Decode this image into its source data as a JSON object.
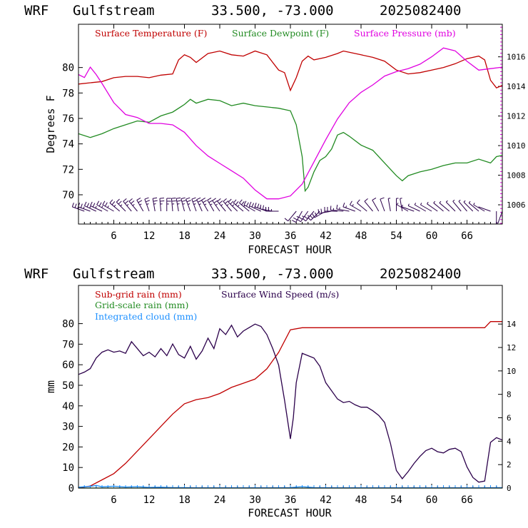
{
  "panels": [
    {
      "header": {
        "model": "WRF",
        "location": "Gulfstream",
        "coords": "33.500, -73.000",
        "date": "2025082400"
      },
      "xlabel": "FORECAST HOUR",
      "ylabel": "Degrees F"
    },
    {
      "header": {
        "model": "WRF",
        "location": "Gulfstream",
        "coords": "33.500, -73.000",
        "date": "2025082400"
      },
      "xlabel": "FORECAST HOUR",
      "ylabel": "mm"
    }
  ],
  "chart_data": [
    {
      "type": "line",
      "xlim": [
        0,
        72
      ],
      "xticks": [
        6,
        12,
        18,
        24,
        30,
        36,
        42,
        48,
        54,
        60,
        66
      ],
      "xlabel": "FORECAST HOUR",
      "ylabel": "Degrees F",
      "ylim": [
        67.7,
        83.4
      ],
      "yticks": [
        70,
        72,
        74,
        76,
        78,
        80
      ],
      "y2lim": [
        1004.7,
        1018.2
      ],
      "y2ticks": [
        1006,
        1008,
        1010,
        1012,
        1014,
        1016
      ],
      "series": [
        {
          "name": "Surface Temperature (F)",
          "color": "#c00000",
          "axis": "left",
          "x": [
            0,
            2,
            4,
            6,
            8,
            10,
            12,
            14,
            16,
            17,
            18,
            19,
            20,
            22,
            24,
            26,
            28,
            30,
            32,
            34,
            35,
            36,
            37,
            38,
            39,
            40,
            42,
            44,
            45,
            46,
            48,
            50,
            52,
            54,
            56,
            58,
            60,
            62,
            64,
            66,
            68,
            69,
            70,
            71,
            72
          ],
          "y": [
            78.7,
            78.8,
            78.9,
            79.2,
            79.3,
            79.3,
            79.2,
            79.4,
            79.5,
            80.6,
            81.0,
            80.8,
            80.4,
            81.1,
            81.3,
            81.0,
            80.9,
            81.3,
            81.0,
            79.8,
            79.6,
            78.2,
            79.2,
            80.5,
            80.9,
            80.6,
            80.8,
            81.1,
            81.3,
            81.2,
            81.0,
            80.8,
            80.5,
            79.8,
            79.5,
            79.6,
            79.8,
            80.0,
            80.3,
            80.7,
            80.9,
            80.6,
            79.0,
            78.4,
            78.6
          ]
        },
        {
          "name": "Surface Dewpoint (F)",
          "color": "#228b22",
          "axis": "left",
          "x": [
            0,
            2,
            4,
            6,
            8,
            10,
            12,
            14,
            16,
            18,
            19,
            20,
            22,
            24,
            26,
            28,
            30,
            32,
            34,
            36,
            37,
            38,
            38.5,
            39,
            40,
            41,
            42,
            43,
            44,
            45,
            46,
            48,
            50,
            52,
            54,
            55,
            56,
            58,
            60,
            62,
            64,
            66,
            68,
            70,
            71,
            72
          ],
          "y": [
            74.8,
            74.5,
            74.8,
            75.2,
            75.5,
            75.8,
            75.7,
            76.2,
            76.5,
            77.1,
            77.5,
            77.2,
            77.5,
            77.4,
            77.0,
            77.2,
            77.0,
            76.9,
            76.8,
            76.6,
            75.5,
            73.0,
            70.3,
            70.6,
            71.8,
            72.7,
            73.0,
            73.6,
            74.7,
            74.9,
            74.6,
            73.9,
            73.5,
            72.5,
            71.5,
            71.1,
            71.5,
            71.8,
            72.0,
            72.3,
            72.5,
            72.5,
            72.8,
            72.5,
            73.0,
            73.1
          ]
        },
        {
          "name": "Surface Pressure (mb)",
          "color": "#e000e0",
          "axis": "right",
          "x": [
            0,
            1,
            2,
            3,
            4,
            6,
            8,
            10,
            12,
            14,
            16,
            18,
            20,
            22,
            24,
            26,
            28,
            30,
            32,
            34,
            36,
            38,
            40,
            42,
            44,
            46,
            48,
            50,
            52,
            54,
            56,
            58,
            60,
            62,
            64,
            66,
            68,
            70,
            72
          ],
          "y": [
            1014.8,
            1014.6,
            1015.3,
            1014.8,
            1014.2,
            1012.9,
            1012.1,
            1011.9,
            1011.5,
            1011.5,
            1011.4,
            1010.9,
            1010.0,
            1009.3,
            1008.8,
            1008.3,
            1007.8,
            1007.0,
            1006.4,
            1006.4,
            1006.6,
            1007.4,
            1008.9,
            1010.4,
            1011.8,
            1012.9,
            1013.6,
            1014.1,
            1014.7,
            1015.0,
            1015.2,
            1015.5,
            1016.0,
            1016.6,
            1016.4,
            1015.7,
            1015.1,
            1015.2,
            1015.3
          ]
        }
      ],
      "wind_barbs": {
        "x": [
          1,
          2,
          3,
          4,
          5,
          6,
          7,
          8,
          9,
          10,
          11,
          12,
          13,
          14,
          15,
          16,
          17,
          18,
          19,
          20,
          21,
          22,
          23,
          24,
          25,
          26,
          27,
          28,
          29,
          30,
          31,
          32,
          33,
          34,
          37,
          38,
          39,
          40,
          41,
          42,
          43,
          44,
          45,
          46,
          47,
          48,
          49,
          50,
          51,
          52,
          53,
          54,
          55,
          56,
          57,
          58,
          59,
          60,
          61,
          62,
          63,
          64,
          65,
          66,
          67,
          68,
          69,
          70,
          71,
          72
        ],
        "dir": [
          290,
          290,
          295,
          295,
          300,
          300,
          310,
          315,
          320,
          320,
          330,
          340,
          350,
          355,
          0,
          355,
          350,
          345,
          340,
          340,
          335,
          330,
          330,
          325,
          320,
          320,
          315,
          310,
          310,
          300,
          295,
          290,
          280,
          270,
          220,
          210,
          215,
          220,
          225,
          240,
          260,
          270,
          275,
          280,
          290,
          300,
          310,
          320,
          330,
          340,
          350,
          0,
          350,
          300,
          290,
          295,
          300,
          300,
          305,
          310,
          310,
          315,
          320,
          320,
          315,
          310,
          300,
          290,
          180,
          200
        ],
        "speed_ms": [
          12,
          12,
          13,
          13,
          13,
          13,
          12,
          12,
          13,
          13,
          13,
          13,
          12,
          12,
          13,
          13,
          13,
          13,
          13,
          12,
          13,
          13,
          13,
          13,
          13,
          14,
          14,
          14,
          14,
          14,
          14,
          14,
          13,
          12,
          6,
          12,
          12,
          12,
          11,
          11,
          10,
          10,
          9,
          8,
          7,
          7,
          6,
          6,
          5,
          5,
          4,
          2,
          2,
          3,
          3,
          3,
          4,
          4,
          4,
          4,
          4,
          4,
          4,
          4,
          3,
          3,
          2,
          1,
          4,
          4
        ]
      }
    },
    {
      "type": "line",
      "xlim": [
        0,
        72
      ],
      "xticks": [
        6,
        12,
        18,
        24,
        30,
        36,
        42,
        48,
        54,
        60,
        66
      ],
      "xlabel": "FORECAST HOUR",
      "ylabel": "mm",
      "ylim": [
        0,
        98.6
      ],
      "yticks": [
        0,
        10,
        20,
        30,
        40,
        50,
        60,
        70,
        80
      ],
      "y2lim": [
        0,
        17.3
      ],
      "y2ticks": [
        0,
        2,
        4,
        6,
        8,
        10,
        12,
        14
      ],
      "series": [
        {
          "name": "Sub-grid rain (mm)",
          "color": "#c00000",
          "axis": "left",
          "x": [
            0,
            2,
            4,
            6,
            8,
            10,
            12,
            14,
            16,
            18,
            20,
            22,
            24,
            26,
            28,
            30,
            32,
            34,
            36,
            38,
            40,
            45,
            50,
            55,
            60,
            65,
            69,
            70,
            72
          ],
          "y": [
            0,
            1,
            4,
            7,
            12,
            18,
            24,
            30,
            36,
            41,
            43,
            44,
            46,
            49,
            51,
            53,
            58,
            66,
            77,
            78,
            78,
            78,
            78,
            78,
            78,
            78,
            78,
            81,
            81
          ]
        },
        {
          "name": "Grid-scale rain (mm)",
          "color": "#228b22",
          "axis": "left",
          "x": [
            0,
            36,
            72
          ],
          "y": [
            0,
            0,
            0
          ]
        },
        {
          "name": "Integrated cloud (mm)",
          "color": "#1e90ff",
          "axis": "left",
          "x": [
            0,
            2,
            3,
            4,
            6,
            8,
            10,
            12,
            14,
            16,
            18,
            20,
            24,
            28,
            32,
            36,
            38,
            40,
            44,
            48,
            52,
            56,
            60,
            64,
            68,
            72
          ],
          "y": [
            0.4,
            0.8,
            1.3,
            0.6,
            0.9,
            0.5,
            0.7,
            0.3,
            0.4,
            0.2,
            0.2,
            0.1,
            0.1,
            0.1,
            0.1,
            0.2,
            0.7,
            0.2,
            0.1,
            0.1,
            0.1,
            0.1,
            0.1,
            0.1,
            0.1,
            0.2
          ]
        },
        {
          "name": "Surface Wind Speed (m/s)",
          "color": "#2b004b",
          "axis": "right",
          "x": [
            0,
            1,
            2,
            3,
            4,
            5,
            6,
            7,
            8,
            9,
            10,
            11,
            12,
            13,
            14,
            15,
            16,
            17,
            18,
            19,
            20,
            21,
            22,
            23,
            24,
            25,
            26,
            27,
            28,
            29,
            30,
            31,
            32,
            33,
            34,
            35,
            36,
            36.5,
            37,
            38,
            39,
            40,
            41,
            42,
            43,
            44,
            45,
            46,
            47,
            48,
            49,
            50,
            51,
            52,
            53,
            54,
            55,
            56,
            57,
            58,
            59,
            60,
            61,
            62,
            63,
            64,
            65,
            66,
            67,
            68,
            69,
            70,
            71,
            72
          ],
          "y": [
            9.7,
            9.9,
            10.2,
            11.1,
            11.6,
            11.8,
            11.6,
            11.7,
            11.5,
            12.5,
            11.9,
            11.3,
            11.6,
            11.2,
            11.9,
            11.3,
            12.3,
            11.4,
            11.1,
            12.1,
            11.0,
            11.7,
            12.8,
            11.9,
            13.6,
            13.1,
            13.9,
            12.9,
            13.4,
            13.7,
            14.0,
            13.8,
            13.1,
            11.9,
            10.5,
            7.5,
            4.2,
            6.0,
            9.0,
            11.5,
            11.3,
            11.1,
            10.4,
            9.0,
            8.3,
            7.6,
            7.3,
            7.4,
            7.1,
            6.9,
            6.9,
            6.6,
            6.2,
            5.6,
            3.8,
            1.5,
            0.8,
            1.4,
            2.1,
            2.7,
            3.2,
            3.4,
            3.1,
            3.0,
            3.3,
            3.4,
            3.1,
            1.8,
            0.9,
            0.5,
            0.6,
            3.9,
            4.3,
            4.1
          ]
        }
      ]
    }
  ]
}
